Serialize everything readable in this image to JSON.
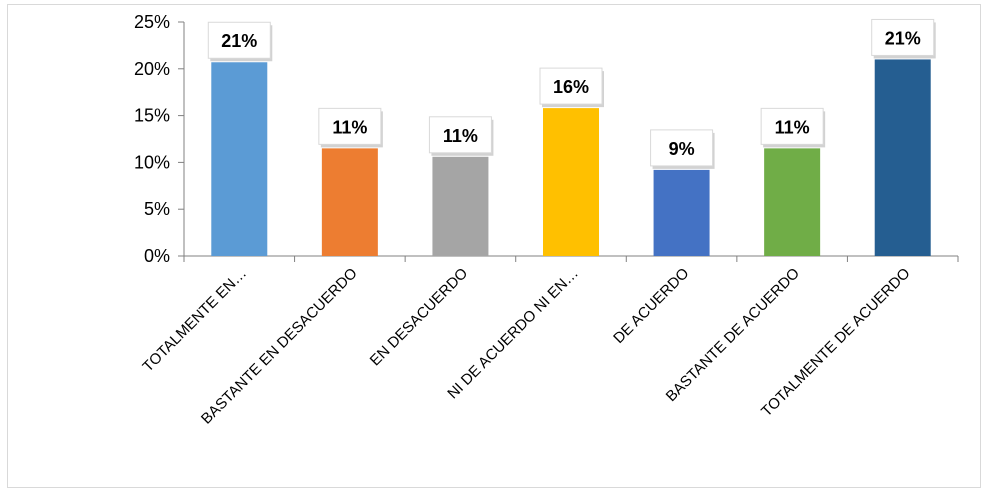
{
  "chart_data": {
    "type": "bar",
    "categories": [
      "TOTALMENTE EN…",
      "BASTANTE EN DESACUERDO",
      "EN DESACUERDO",
      "NI DE ACUERDO NI EN…",
      "DE ACUERDO",
      "BASTANTE DE ACUERDO",
      "TOTALMENTE DE ACUERDO"
    ],
    "values": [
      20.7,
      11.5,
      10.6,
      15.8,
      9.2,
      11.5,
      21.0
    ],
    "data_labels": [
      "21%",
      "11%",
      "11%",
      "16%",
      "9%",
      "11%",
      "21%"
    ],
    "colors": [
      "#5b9bd5",
      "#ed7d31",
      "#a5a5a5",
      "#ffc000",
      "#4472c4",
      "#70ad47",
      "#255e91"
    ],
    "y_ticks": [
      "0%",
      "5%",
      "10%",
      "15%",
      "20%",
      "25%"
    ],
    "ylim": [
      0,
      25
    ],
    "title": "",
    "xlabel": "",
    "ylabel": "",
    "grid": false,
    "legend": "none"
  }
}
